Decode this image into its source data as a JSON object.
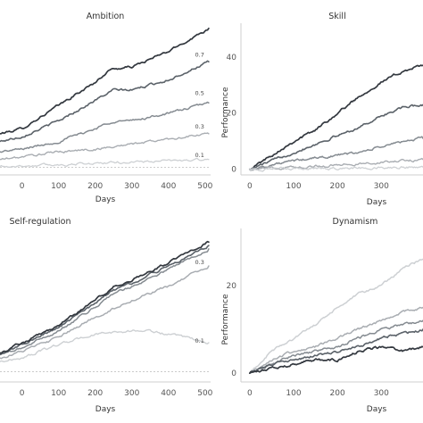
{
  "chart_data": [
    {
      "type": "line",
      "title": "Ambition",
      "xlabel": "Days",
      "ylabel": "",
      "xlim": [
        -60,
        515
      ],
      "ylim": [
        -3,
        56
      ],
      "xticks": [
        {
          "v": 0,
          "label": "0"
        },
        {
          "v": 100,
          "label": "100"
        },
        {
          "v": 200,
          "label": "200"
        },
        {
          "v": 300,
          "label": "300"
        },
        {
          "v": 400,
          "label": "400"
        },
        {
          "v": 500,
          "label": "500"
        }
      ],
      "yticks": [],
      "zero_line": true,
      "series": [
        {
          "name": "",
          "color": "#33383f",
          "width": 1.7,
          "points": [
            [
              -60,
              13
            ],
            [
              0,
              15
            ],
            [
              100,
              24
            ],
            [
              200,
              33
            ],
            [
              240,
              38
            ],
            [
              300,
              39
            ],
            [
              400,
              45
            ],
            [
              510,
              54
            ]
          ]
        },
        {
          "name": "0.7",
          "color": "#5b6269",
          "width": 1.6,
          "points": [
            [
              -60,
              10
            ],
            [
              0,
              12
            ],
            [
              100,
              18
            ],
            [
              200,
              26
            ],
            [
              250,
              30
            ],
            [
              300,
              30
            ],
            [
              400,
              34
            ],
            [
              510,
              41
            ]
          ]
        },
        {
          "name": "0.5",
          "color": "#858b91",
          "width": 1.5,
          "points": [
            [
              -60,
              6
            ],
            [
              0,
              7
            ],
            [
              100,
              10
            ],
            [
              200,
              15
            ],
            [
              250,
              18
            ],
            [
              300,
              18
            ],
            [
              400,
              21
            ],
            [
              510,
              25
            ]
          ]
        },
        {
          "name": "0.3",
          "color": "#a9adb2",
          "width": 1.4,
          "points": [
            [
              -60,
              3
            ],
            [
              0,
              4
            ],
            [
              100,
              6
            ],
            [
              200,
              7
            ],
            [
              300,
              9
            ],
            [
              400,
              11
            ],
            [
              510,
              13
            ]
          ]
        },
        {
          "name": "0.1",
          "color": "#cdd0d3",
          "width": 1.3,
          "points": [
            [
              -60,
              0.3
            ],
            [
              0,
              0.5
            ],
            [
              100,
              1
            ],
            [
              200,
              1.5
            ],
            [
              300,
              2
            ],
            [
              400,
              2.5
            ],
            [
              510,
              3
            ]
          ]
        }
      ],
      "labels": [
        {
          "text": "0.7",
          "x": 485,
          "y": 43
        },
        {
          "text": "0.5",
          "x": 485,
          "y": 28
        },
        {
          "text": "0.3",
          "x": 485,
          "y": 15
        },
        {
          "text": "0.1",
          "x": 485,
          "y": 4
        }
      ]
    },
    {
      "type": "line",
      "title": "Skill",
      "xlabel": "Days",
      "ylabel": "Performance",
      "xlim": [
        -20,
        395
      ],
      "ylim": [
        -2,
        52
      ],
      "xticks": [
        {
          "v": 0,
          "label": "0"
        },
        {
          "v": 100,
          "label": "100"
        },
        {
          "v": 200,
          "label": "200"
        },
        {
          "v": 300,
          "label": "300"
        }
      ],
      "yticks": [
        {
          "v": 0,
          "label": "0"
        },
        {
          "v": 20,
          "label": "20"
        },
        {
          "v": 40,
          "label": "40"
        }
      ],
      "zero_line": false,
      "series": [
        {
          "name": "",
          "color": "#33383f",
          "width": 1.7,
          "points": [
            [
              0,
              0
            ],
            [
              50,
              5
            ],
            [
              100,
              10
            ],
            [
              150,
              14
            ],
            [
              200,
              20
            ],
            [
              250,
              26
            ],
            [
              300,
              31
            ],
            [
              350,
              35
            ],
            [
              395,
              37
            ]
          ]
        },
        {
          "name": "",
          "color": "#5b6269",
          "width": 1.6,
          "points": [
            [
              0,
              0
            ],
            [
              50,
              3
            ],
            [
              100,
              6
            ],
            [
              150,
              9
            ],
            [
              200,
              12
            ],
            [
              250,
              15
            ],
            [
              300,
              19
            ],
            [
              350,
              22
            ],
            [
              395,
              23
            ]
          ]
        },
        {
          "name": "",
          "color": "#858b91",
          "width": 1.5,
          "points": [
            [
              0,
              0
            ],
            [
              50,
              1.5
            ],
            [
              100,
              3
            ],
            [
              150,
              4
            ],
            [
              200,
              5
            ],
            [
              250,
              6
            ],
            [
              300,
              8
            ],
            [
              350,
              10
            ],
            [
              395,
              11
            ]
          ]
        },
        {
          "name": "",
          "color": "#a9adb2",
          "width": 1.4,
          "points": [
            [
              0,
              0
            ],
            [
              100,
              0.8
            ],
            [
              200,
              1.5
            ],
            [
              300,
              2.5
            ],
            [
              350,
              3
            ],
            [
              395,
              3.5
            ]
          ]
        },
        {
          "name": "",
          "color": "#cdd0d3",
          "width": 1.3,
          "points": [
            [
              0,
              0
            ],
            [
              100,
              0.2
            ],
            [
              200,
              0.4
            ],
            [
              300,
              0.6
            ],
            [
              395,
              0.8
            ]
          ]
        }
      ],
      "labels": []
    },
    {
      "type": "line",
      "title": "Self-regulation",
      "xlabel": "Days",
      "ylabel": "",
      "xlim": [
        -60,
        515
      ],
      "ylim": [
        -3,
        42
      ],
      "xticks": [
        {
          "v": 0,
          "label": "0"
        },
        {
          "v": 100,
          "label": "100"
        },
        {
          "v": 200,
          "label": "200"
        },
        {
          "v": 300,
          "label": "300"
        },
        {
          "v": 400,
          "label": "400"
        },
        {
          "v": 500,
          "label": "500"
        }
      ],
      "yticks": [],
      "zero_line": true,
      "series": [
        {
          "name": "",
          "color": "#cdd0d3",
          "width": 1.4,
          "points": [
            [
              -60,
              3
            ],
            [
              0,
              4
            ],
            [
              100,
              8
            ],
            [
              200,
              11
            ],
            [
              300,
              12
            ],
            [
              350,
              12
            ],
            [
              420,
              10.5
            ],
            [
              510,
              8.5
            ]
          ]
        },
        {
          "name": "",
          "color": "#a9adb2",
          "width": 1.5,
          "points": [
            [
              -60,
              4
            ],
            [
              0,
              6
            ],
            [
              100,
              10
            ],
            [
              200,
              16
            ],
            [
              300,
              21
            ],
            [
              400,
              25
            ],
            [
              510,
              31
            ]
          ]
        },
        {
          "name": "",
          "color": "#858b91",
          "width": 1.5,
          "points": [
            [
              -60,
              5
            ],
            [
              0,
              7
            ],
            [
              100,
              12
            ],
            [
              200,
              19
            ],
            [
              250,
              23
            ],
            [
              300,
              25
            ],
            [
              400,
              30
            ],
            [
              510,
              36
            ]
          ]
        },
        {
          "name": "",
          "color": "#5b6269",
          "width": 1.6,
          "points": [
            [
              -60,
              5
            ],
            [
              0,
              8
            ],
            [
              100,
              13
            ],
            [
              200,
              20
            ],
            [
              250,
              24
            ],
            [
              300,
              26
            ],
            [
              400,
              31
            ],
            [
              510,
              37
            ]
          ]
        },
        {
          "name": "",
          "color": "#33383f",
          "width": 1.7,
          "points": [
            [
              -60,
              5.5
            ],
            [
              0,
              8.5
            ],
            [
              100,
              13.5
            ],
            [
              200,
              21
            ],
            [
              250,
              25
            ],
            [
              300,
              27
            ],
            [
              400,
              32
            ],
            [
              510,
              38
            ]
          ]
        }
      ],
      "labels": [
        {
          "text": "0.3",
          "x": 485,
          "y": 31.5
        },
        {
          "text": "0.1",
          "x": 485,
          "y": 8.5
        }
      ]
    },
    {
      "type": "line",
      "title": "Dynamism",
      "xlabel": "Days",
      "ylabel": "Performance",
      "xlim": [
        -20,
        395
      ],
      "ylim": [
        -2,
        33
      ],
      "xticks": [
        {
          "v": 0,
          "label": "0"
        },
        {
          "v": 100,
          "label": "100"
        },
        {
          "v": 200,
          "label": "200"
        },
        {
          "v": 300,
          "label": "300"
        }
      ],
      "yticks": [
        {
          "v": 0,
          "label": "0"
        },
        {
          "v": 20,
          "label": "20"
        }
      ],
      "zero_line": false,
      "series": [
        {
          "name": "",
          "color": "#cdd0d3",
          "width": 1.5,
          "points": [
            [
              0,
              0
            ],
            [
              50,
              5
            ],
            [
              100,
              8
            ],
            [
              150,
              11
            ],
            [
              200,
              15
            ],
            [
              250,
              18
            ],
            [
              300,
              20
            ],
            [
              350,
              24
            ],
            [
              395,
              26
            ]
          ]
        },
        {
          "name": "",
          "color": "#a9adb2",
          "width": 1.5,
          "points": [
            [
              0,
              0
            ],
            [
              50,
              3
            ],
            [
              100,
              5
            ],
            [
              150,
              6
            ],
            [
              200,
              8
            ],
            [
              250,
              10
            ],
            [
              300,
              12
            ],
            [
              350,
              14
            ],
            [
              395,
              15
            ]
          ]
        },
        {
          "name": "",
          "color": "#858b91",
          "width": 1.5,
          "points": [
            [
              0,
              0
            ],
            [
              50,
              2
            ],
            [
              100,
              4
            ],
            [
              150,
              5
            ],
            [
              200,
              6
            ],
            [
              250,
              8
            ],
            [
              300,
              10
            ],
            [
              350,
              11
            ],
            [
              395,
              12
            ]
          ]
        },
        {
          "name": "",
          "color": "#5b6269",
          "width": 1.6,
          "points": [
            [
              0,
              0
            ],
            [
              50,
              2
            ],
            [
              100,
              3
            ],
            [
              150,
              4
            ],
            [
              200,
              5
            ],
            [
              250,
              6
            ],
            [
              300,
              8
            ],
            [
              350,
              9
            ],
            [
              395,
              10
            ]
          ]
        },
        {
          "name": "",
          "color": "#33383f",
          "width": 1.7,
          "points": [
            [
              0,
              0
            ],
            [
              50,
              1
            ],
            [
              100,
              2
            ],
            [
              150,
              3
            ],
            [
              200,
              3
            ],
            [
              250,
              5
            ],
            [
              300,
              6
            ],
            [
              350,
              5
            ],
            [
              395,
              6
            ]
          ]
        }
      ],
      "labels": []
    }
  ]
}
